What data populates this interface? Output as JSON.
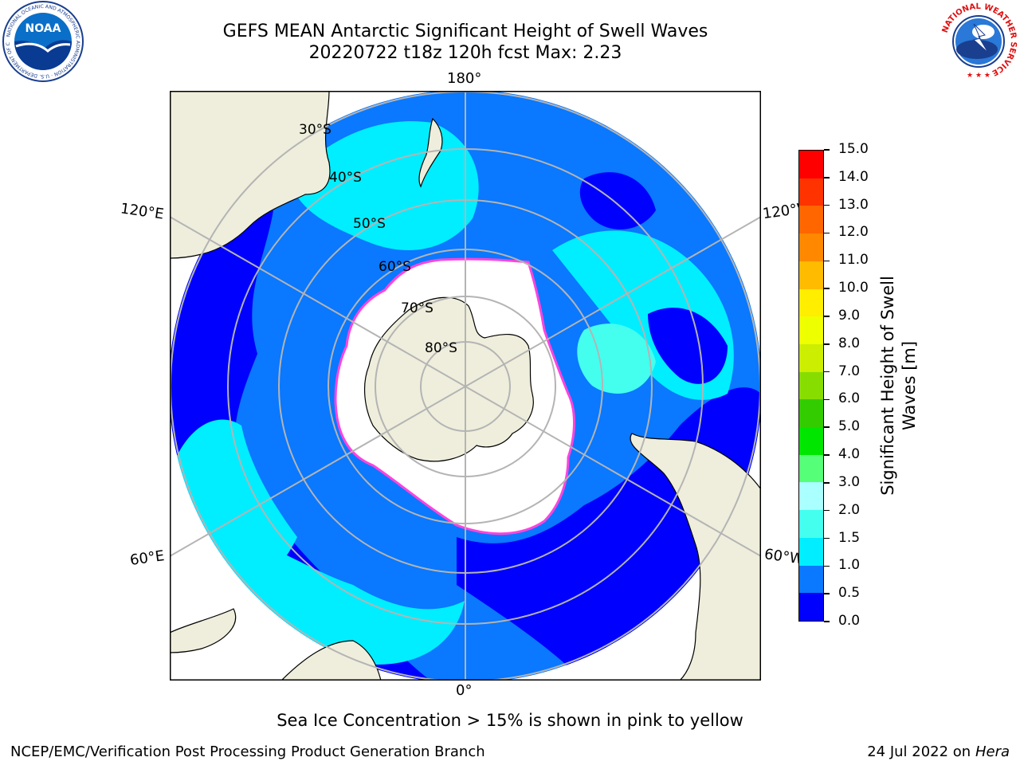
{
  "header": {
    "title_line1": "GEFS MEAN Antarctic Significant Height of Swell Waves",
    "title_line2": "20220722 t18z 120h fcst   Max: 2.23"
  },
  "logos": {
    "left_name": "NOAA",
    "left_ring_text": "NATIONAL OCEANIC AND ATMOSPHERIC ADMINISTRATION · U.S. DEPARTMENT OF COMMERCE",
    "right_ring_text": "NATIONAL WEATHER SERVICE"
  },
  "map": {
    "longitude_labels": {
      "top": "180°",
      "bottom": "0°",
      "upper_left": "120°E",
      "upper_right": "120°W",
      "lower_left": "60°E",
      "lower_right": "60°W"
    },
    "latitude_labels": [
      "30°S",
      "40°S",
      "50°S",
      "60°S",
      "70°S",
      "80°S"
    ],
    "colors": {
      "land": "#efeedc",
      "ice": "#ffffff",
      "ice_edge": "#ff44dd",
      "grid": "#b4b4b4"
    }
  },
  "colorbar": {
    "label_line1": "Significant Height of Swell",
    "label_line2": "Waves [m]",
    "ticks": [
      "0.0",
      "0.5",
      "1.0",
      "1.5",
      "2.0",
      "3.0",
      "4.0",
      "5.0",
      "6.0",
      "7.0",
      "8.0",
      "9.0",
      "10.0",
      "11.0",
      "12.0",
      "13.0",
      "14.0",
      "15.0"
    ],
    "colors": [
      "#0000ff",
      "#0a78ff",
      "#00eeff",
      "#44ffee",
      "#aaffff",
      "#55ff77",
      "#00e600",
      "#33cc00",
      "#88dd00",
      "#ccee00",
      "#eeff00",
      "#ffee00",
      "#ffbb00",
      "#ff8800",
      "#ff6600",
      "#ff3300",
      "#ff0000"
    ]
  },
  "footer": {
    "note": "Sea Ice Concentration > 15% is shown in pink to yellow",
    "left": "NCEP/EMC/Verification Post Processing Product Generation Branch",
    "date": "24 Jul 2022 on ",
    "machine": "Hera"
  }
}
